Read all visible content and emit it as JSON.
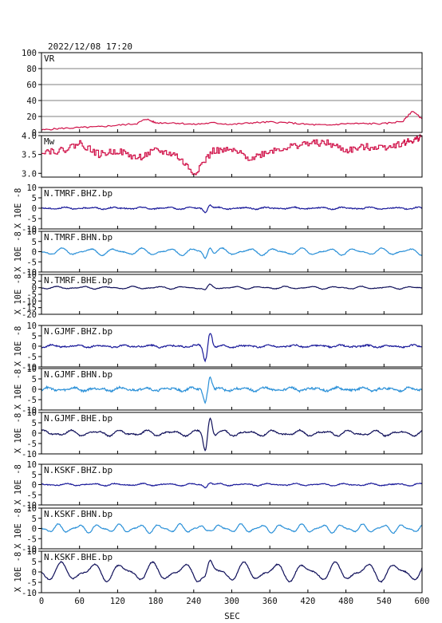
{
  "header": {
    "datetime": "2022/12/08 17:20"
  },
  "colors": {
    "vr_line": "#d01048",
    "mw_line": "#d01048",
    "bhz": "#1a1a9a",
    "bhn": "#2a90d8",
    "bhe": "#10105a",
    "axis": "#000000"
  },
  "chart_data": [
    {
      "type": "line",
      "id": "vr",
      "title": "VR",
      "ylim": [
        0,
        100
      ],
      "yticks": [
        0,
        20,
        40,
        60,
        80,
        100
      ],
      "grid": true,
      "series": [
        {
          "x": [
            0,
            30,
            60,
            90,
            120,
            150,
            165,
            180,
            210,
            240,
            270,
            300,
            330,
            360,
            390,
            420,
            450,
            480,
            510,
            540,
            570,
            585,
            600
          ],
          "values": [
            3,
            5,
            6,
            7,
            9,
            11,
            17,
            12,
            12,
            10,
            12,
            10,
            12,
            13,
            12,
            10,
            9,
            11,
            11,
            11,
            14,
            27,
            17
          ]
        }
      ]
    },
    {
      "type": "line",
      "id": "mw",
      "title": "Mw",
      "ylim": [
        2.9,
        4.0
      ],
      "yticks": [
        3.0,
        3.5,
        4.0
      ],
      "ytick_labels": [
        "3.0",
        "3.5",
        "4.0"
      ],
      "grid": false,
      "series": [
        {
          "x": [
            0,
            30,
            60,
            90,
            120,
            150,
            180,
            210,
            240,
            270,
            300,
            330,
            360,
            390,
            420,
            450,
            480,
            510,
            540,
            570,
            590,
            600
          ],
          "values": [
            3.6,
            3.6,
            3.8,
            3.5,
            3.6,
            3.4,
            3.6,
            3.5,
            3.0,
            3.6,
            3.6,
            3.4,
            3.6,
            3.7,
            3.8,
            3.8,
            3.6,
            3.7,
            3.7,
            3.8,
            3.9,
            4.0
          ]
        }
      ]
    },
    {
      "type": "line",
      "id": "tmrf-bhz",
      "title": "N.TMRF.BHZ.bp",
      "color_key": "bhz",
      "ylim": [
        -10,
        10
      ],
      "yticks": [
        -10,
        -5,
        0,
        5,
        10
      ],
      "ylabel": "X 10E -8",
      "amp": 0.35,
      "event": 2.5,
      "noise": 0.25,
      "period": 40
    },
    {
      "type": "line",
      "id": "tmrf-bhn",
      "title": "N.TMRF.BHN.bp",
      "color_key": "bhn",
      "ylim": [
        -10,
        10
      ],
      "yticks": [
        -10,
        -5,
        0,
        5,
        10
      ],
      "ylabel": "X 10E -8",
      "amp": 1.2,
      "event": 4.2,
      "noise": 0.2,
      "period": 42
    },
    {
      "type": "line",
      "id": "tmrf-bhe",
      "title": "N.TMRF.BHE.bp",
      "color_key": "bhe",
      "ylim": [
        -20,
        10
      ],
      "yticks": [
        -20,
        -15,
        -10,
        -5,
        0,
        5,
        10
      ],
      "ylabel": "X 10E -8",
      "amp": 0.7,
      "event": 2.5,
      "noise": 0.2,
      "period": 40
    },
    {
      "type": "line",
      "id": "gjmf-bhz",
      "title": "N.GJMF.BHZ.bp",
      "color_key": "bhz",
      "ylim": [
        -10,
        10
      ],
      "yticks": [
        -10,
        -5,
        0,
        5,
        10
      ],
      "ylabel": "X 10E -8",
      "amp": 0.4,
      "event": 9.5,
      "noise": 0.35,
      "period": 38
    },
    {
      "type": "line",
      "id": "gjmf-bhn",
      "title": "N.GJMF.BHN.bp",
      "color_key": "bhn",
      "ylim": [
        -10,
        10
      ],
      "yticks": [
        -10,
        -5,
        0,
        5,
        10
      ],
      "ylabel": "X 10E -8",
      "amp": 0.6,
      "event": 8.5,
      "noise": 0.5,
      "period": 38
    },
    {
      "type": "line",
      "id": "gjmf-bhe",
      "title": "N.GJMF.BHE.bp",
      "color_key": "bhe",
      "ylim": [
        -10,
        10
      ],
      "yticks": [
        -10,
        -5,
        0,
        5,
        10
      ],
      "ylabel": "X 10E -8",
      "amp": 1.0,
      "event": 11,
      "noise": 0.3,
      "period": 40
    },
    {
      "type": "line",
      "id": "kskf-bhz",
      "title": "N.KSKF.BHZ.bp",
      "color_key": "bhz",
      "ylim": [
        -10,
        10
      ],
      "yticks": [
        -10,
        -5,
        0,
        5,
        10
      ],
      "ylabel": "X 10E -8",
      "amp": 0.4,
      "event": 1.8,
      "noise": 0.2,
      "period": 40
    },
    {
      "type": "line",
      "id": "kskf-bhn",
      "title": "N.KSKF.BHN.bp",
      "color_key": "bhn",
      "ylim": [
        -10,
        10
      ],
      "yticks": [
        -10,
        -5,
        0,
        5,
        10
      ],
      "ylabel": "X 10E -8",
      "amp": 1.5,
      "event": 1.5,
      "noise": 0.2,
      "period": 32
    },
    {
      "type": "line",
      "id": "kskf-bhe",
      "title": "N.KSKF.BHE.bp",
      "color_key": "bhe",
      "ylim": [
        -10,
        10
      ],
      "yticks": [
        -10,
        -5,
        0,
        5,
        10
      ],
      "ylabel": "X 10E -8",
      "amp": 3.2,
      "event": 3.5,
      "noise": 0.25,
      "period": 48
    }
  ],
  "x_axis": {
    "label": "SEC",
    "xlim": [
      0,
      600
    ],
    "ticks": [
      0,
      60,
      120,
      180,
      240,
      300,
      360,
      420,
      480,
      540,
      600
    ]
  }
}
